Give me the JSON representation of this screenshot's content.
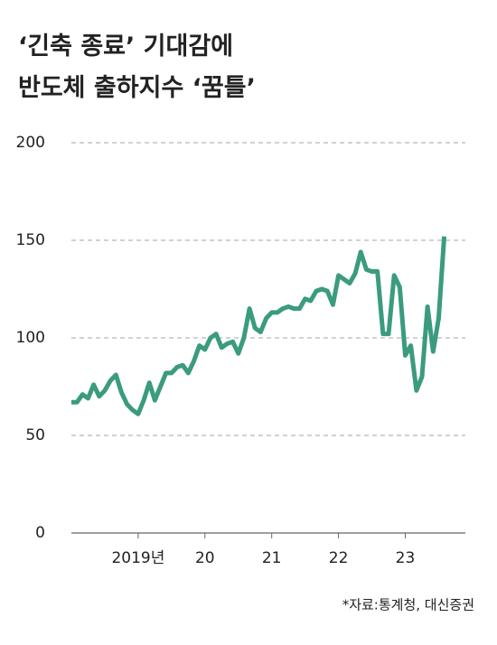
{
  "chart_data": {
    "type": "line",
    "title": [
      "‘긴축 종료’ 기대감에",
      "반도체 출하지수 ‘꿈틀’"
    ],
    "source": "*자료:통계청, 대신증권",
    "x": [
      2018,
      2018.083,
      2018.167,
      2018.25,
      2018.333,
      2018.417,
      2018.5,
      2018.583,
      2018.667,
      2018.75,
      2018.833,
      2018.917,
      2019,
      2019.083,
      2019.167,
      2019.25,
      2019.333,
      2019.417,
      2019.5,
      2019.583,
      2019.667,
      2019.75,
      2019.833,
      2019.917,
      2020,
      2020.083,
      2020.167,
      2020.25,
      2020.333,
      2020.417,
      2020.5,
      2020.583,
      2020.667,
      2020.75,
      2020.833,
      2020.917,
      2021,
      2021.083,
      2021.167,
      2021.25,
      2021.333,
      2021.417,
      2021.5,
      2021.583,
      2021.667,
      2021.75,
      2021.833,
      2021.917,
      2022,
      2022.083,
      2022.167,
      2022.25,
      2022.333,
      2022.417,
      2022.5,
      2022.583,
      2022.667,
      2022.75,
      2022.833,
      2022.917,
      2023,
      2023.083,
      2023.167,
      2023.25,
      2023.333,
      2023.417,
      2023.5,
      2023.583
    ],
    "series": [
      {
        "name": "반도체 출하지수",
        "color": "#3b9b7f",
        "values": [
          67,
          67,
          71,
          69,
          76,
          70,
          73,
          78,
          81,
          72,
          66,
          63,
          61,
          68,
          77,
          68,
          75,
          82,
          82,
          85,
          86,
          82,
          88,
          96,
          94,
          100,
          102,
          95,
          97,
          98,
          92,
          100,
          115,
          105,
          103,
          110,
          113,
          113,
          115,
          116,
          115,
          115,
          120,
          119,
          124,
          125,
          124,
          117,
          132,
          130,
          128,
          133,
          144,
          135,
          134,
          134,
          102,
          102,
          132,
          126,
          91,
          96,
          73,
          80,
          116,
          93,
          110,
          152
        ]
      }
    ],
    "xlim": [
      2018,
      2023.9
    ],
    "xticks": [
      {
        "value": 2019,
        "label": "2019년"
      },
      {
        "value": 2020,
        "label": "20"
      },
      {
        "value": 2021,
        "label": "21"
      },
      {
        "value": 2022,
        "label": "22"
      },
      {
        "value": 2023,
        "label": "23"
      }
    ],
    "ylim": [
      0,
      200
    ],
    "yticks": [
      0,
      50,
      100,
      150,
      200
    ],
    "grid": true
  }
}
